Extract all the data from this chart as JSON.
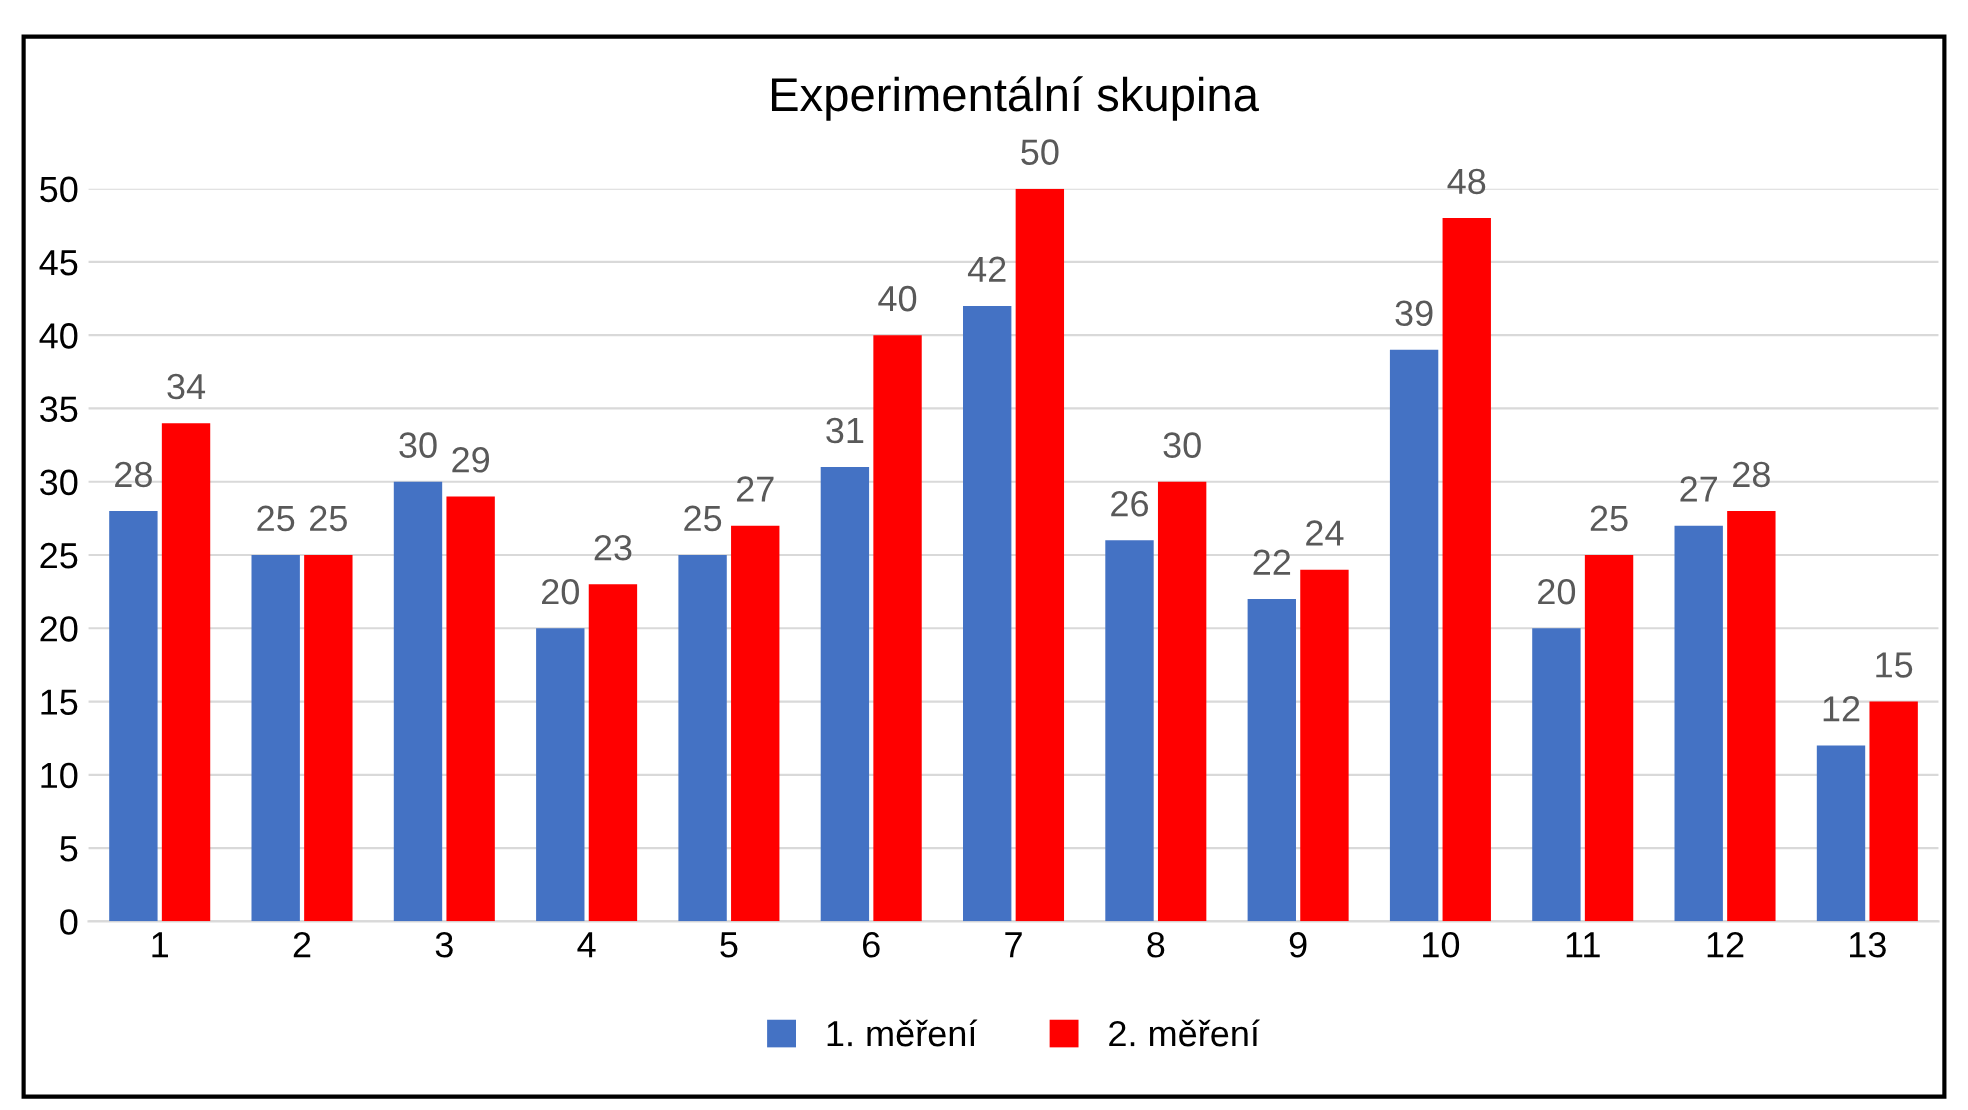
{
  "chart_data": {
    "type": "bar",
    "title": "Experimentální skupina",
    "categories": [
      "1",
      "2",
      "3",
      "4",
      "5",
      "6",
      "7",
      "8",
      "9",
      "10",
      "11",
      "12",
      "13"
    ],
    "series": [
      {
        "name": "1. měření",
        "color": "#4472c4",
        "values": [
          28,
          25,
          30,
          20,
          25,
          31,
          42,
          26,
          22,
          39,
          20,
          27,
          12
        ]
      },
      {
        "name": "2. měření",
        "color": "#ff0000",
        "values": [
          34,
          25,
          29,
          23,
          27,
          40,
          50,
          30,
          24,
          48,
          25,
          28,
          15
        ]
      }
    ],
    "ylim": [
      0,
      50
    ],
    "yticks": [
      0,
      5,
      10,
      15,
      20,
      25,
      30,
      35,
      40,
      45,
      50
    ],
    "grid": "y",
    "legend": "bottom",
    "data_labels": true
  }
}
